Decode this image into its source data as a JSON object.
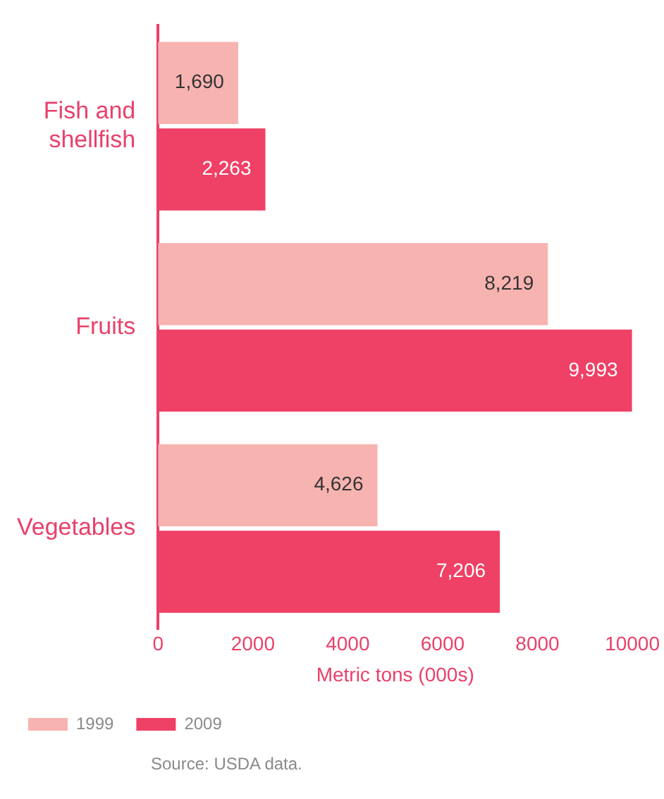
{
  "chart_data": {
    "type": "bar",
    "orientation": "horizontal",
    "categories": [
      "Fish and shellfish",
      "Fruits",
      "Vegetables"
    ],
    "series": [
      {
        "name": "1999",
        "color": "#f7b3b0",
        "values": [
          1690,
          8219,
          4626
        ],
        "value_labels": [
          "1,690",
          "8,219",
          "4,626"
        ]
      },
      {
        "name": "2009",
        "color": "#ef4065",
        "values": [
          2263,
          9993,
          7206
        ],
        "value_labels": [
          "2,263",
          "9,993",
          "7,206"
        ]
      }
    ],
    "xlim": [
      0,
      10000
    ],
    "xticks": [
      0,
      2000,
      4000,
      6000,
      8000,
      10000
    ],
    "xlabel": "Metric tons (000s)",
    "grid": false,
    "legend": "bottom left",
    "annotations": [
      "Source: USDA data."
    ]
  }
}
